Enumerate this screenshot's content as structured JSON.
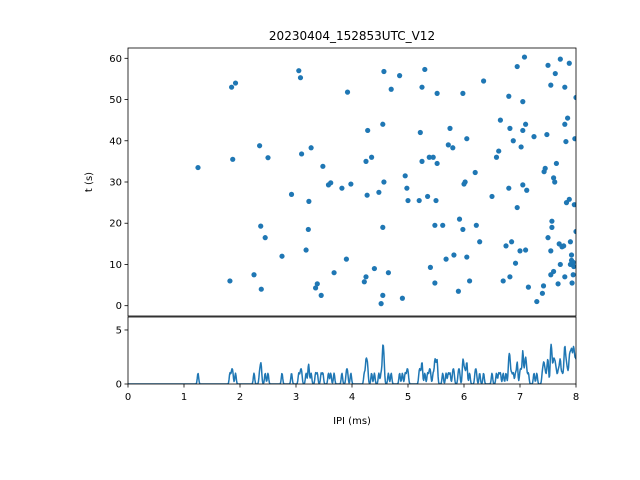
{
  "chart_data": [
    {
      "type": "scatter",
      "title": "20230404_152853UTC_V12",
      "xlabel": "",
      "ylabel": "t (s)",
      "xlim": [
        0,
        8
      ],
      "ylim": [
        62.5,
        -2.5
      ],
      "yticks": [
        0,
        10,
        20,
        30,
        40,
        50,
        60
      ],
      "color": "#1f77b4",
      "grid": false,
      "points": [
        [
          1.25,
          33.5
        ],
        [
          1.82,
          6.0
        ],
        [
          1.85,
          53.0
        ],
        [
          1.87,
          35.5
        ],
        [
          1.92,
          54.0
        ],
        [
          2.25,
          7.5
        ],
        [
          2.35,
          38.8
        ],
        [
          2.37,
          19.3
        ],
        [
          2.38,
          4.0
        ],
        [
          2.45,
          16.5
        ],
        [
          2.5,
          35.9
        ],
        [
          2.75,
          12.0
        ],
        [
          2.92,
          27.0
        ],
        [
          3.05,
          57.0
        ],
        [
          3.08,
          55.3
        ],
        [
          3.1,
          36.8
        ],
        [
          3.18,
          13.5
        ],
        [
          3.22,
          18.5
        ],
        [
          3.23,
          25.3
        ],
        [
          3.27,
          38.3
        ],
        [
          3.35,
          4.3
        ],
        [
          3.38,
          5.3
        ],
        [
          3.45,
          2.5
        ],
        [
          3.48,
          33.8
        ],
        [
          3.58,
          29.3
        ],
        [
          3.62,
          29.8
        ],
        [
          3.68,
          8.0
        ],
        [
          3.82,
          28.5
        ],
        [
          3.9,
          11.3
        ],
        [
          3.92,
          51.8
        ],
        [
          3.98,
          29.5
        ],
        [
          4.22,
          5.8
        ],
        [
          4.25,
          7.0
        ],
        [
          4.25,
          35.0
        ],
        [
          4.27,
          26.8
        ],
        [
          4.28,
          42.5
        ],
        [
          4.35,
          36.0
        ],
        [
          4.4,
          9.0
        ],
        [
          4.48,
          27.5
        ],
        [
          4.52,
          0.5
        ],
        [
          4.55,
          2.5
        ],
        [
          4.55,
          19.0
        ],
        [
          4.57,
          30.0
        ],
        [
          4.55,
          44.0
        ],
        [
          4.57,
          56.8
        ],
        [
          4.65,
          8.0
        ],
        [
          4.7,
          52.5
        ],
        [
          4.85,
          55.8
        ],
        [
          4.9,
          1.8
        ],
        [
          4.95,
          31.5
        ],
        [
          4.98,
          28.5
        ],
        [
          5.0,
          25.5
        ],
        [
          5.2,
          25.5
        ],
        [
          5.22,
          42.0
        ],
        [
          5.25,
          53.0
        ],
        [
          5.25,
          35.0
        ],
        [
          5.3,
          57.3
        ],
        [
          5.35,
          26.5
        ],
        [
          5.38,
          36.0
        ],
        [
          5.4,
          9.3
        ],
        [
          5.45,
          36.0
        ],
        [
          5.48,
          19.5
        ],
        [
          5.48,
          5.5
        ],
        [
          5.52,
          51.5
        ],
        [
          5.5,
          25.5
        ],
        [
          5.52,
          34.5
        ],
        [
          5.62,
          19.5
        ],
        [
          5.68,
          11.3
        ],
        [
          5.72,
          39.0
        ],
        [
          5.75,
          43.0
        ],
        [
          5.8,
          38.3
        ],
        [
          5.82,
          12.3
        ],
        [
          5.9,
          3.5
        ],
        [
          5.92,
          21.0
        ],
        [
          5.98,
          51.5
        ],
        [
          5.98,
          18.5
        ],
        [
          6.0,
          29.5
        ],
        [
          6.02,
          30.0
        ],
        [
          6.05,
          11.8
        ],
        [
          6.05,
          40.5
        ],
        [
          6.1,
          6.0
        ],
        [
          6.2,
          32.3
        ],
        [
          6.22,
          19.5
        ],
        [
          6.28,
          15.5
        ],
        [
          6.35,
          54.5
        ],
        [
          6.5,
          26.5
        ],
        [
          6.58,
          36.0
        ],
        [
          6.62,
          37.5
        ],
        [
          6.65,
          45.0
        ],
        [
          6.7,
          6.0
        ],
        [
          6.75,
          14.5
        ],
        [
          6.8,
          28.5
        ],
        [
          6.82,
          43.0
        ],
        [
          6.8,
          50.8
        ],
        [
          6.82,
          7.0
        ],
        [
          6.85,
          15.5
        ],
        [
          6.88,
          40.0
        ],
        [
          6.92,
          10.3
        ],
        [
          6.95,
          23.8
        ],
        [
          6.95,
          58.0
        ],
        [
          7.0,
          13.3
        ],
        [
          7.02,
          38.5
        ],
        [
          7.05,
          29.3
        ],
        [
          7.05,
          42.5
        ],
        [
          7.05,
          49.5
        ],
        [
          7.08,
          60.3
        ],
        [
          7.1,
          44.0
        ],
        [
          7.12,
          28.0
        ],
        [
          7.1,
          13.5
        ],
        [
          7.15,
          4.5
        ],
        [
          7.25,
          41.0
        ],
        [
          7.3,
          1.0
        ],
        [
          7.4,
          3.0
        ],
        [
          7.42,
          4.8
        ],
        [
          7.43,
          32.5
        ],
        [
          7.45,
          33.3
        ],
        [
          7.48,
          41.5
        ],
        [
          7.5,
          16.5
        ],
        [
          7.5,
          58.3
        ],
        [
          7.55,
          13.3
        ],
        [
          7.55,
          53.5
        ],
        [
          7.57,
          20.5
        ],
        [
          7.55,
          7.5
        ],
        [
          7.57,
          19.0
        ],
        [
          7.6,
          8.3
        ],
        [
          7.6,
          31.0
        ],
        [
          7.62,
          30.0
        ],
        [
          7.63,
          56.3
        ],
        [
          7.65,
          34.5
        ],
        [
          7.68,
          5.3
        ],
        [
          7.7,
          15.0
        ],
        [
          7.72,
          10.0
        ],
        [
          7.72,
          59.8
        ],
        [
          7.75,
          14.3
        ],
        [
          7.78,
          14.5
        ],
        [
          7.8,
          7.0
        ],
        [
          7.8,
          53.0
        ],
        [
          7.8,
          44.0
        ],
        [
          7.82,
          39.8
        ],
        [
          7.83,
          25.0
        ],
        [
          7.85,
          45.5
        ],
        [
          7.88,
          58.8
        ],
        [
          7.88,
          25.8
        ],
        [
          7.9,
          15.5
        ],
        [
          7.9,
          10.0
        ],
        [
          7.92,
          11.0
        ],
        [
          7.93,
          5.5
        ],
        [
          7.95,
          10.5
        ],
        [
          7.95,
          7.5
        ],
        [
          7.97,
          24.5
        ],
        [
          7.98,
          40.5
        ],
        [
          8.0,
          18.0
        ],
        [
          8.0,
          50.5
        ],
        [
          7.96,
          9.5
        ],
        [
          7.92,
          12.3
        ]
      ]
    },
    {
      "type": "line",
      "title": "",
      "xlabel": "IPI (ms)",
      "ylabel": "",
      "xlim": [
        0,
        8
      ],
      "ylim": [
        0,
        6.2
      ],
      "xticks": [
        0,
        1,
        2,
        3,
        4,
        5,
        6,
        7,
        8
      ],
      "yticks": [
        0,
        5
      ],
      "color": "#1f77b4",
      "grid": false,
      "note_kde": true,
      "bandwidth": 0.012
    }
  ]
}
